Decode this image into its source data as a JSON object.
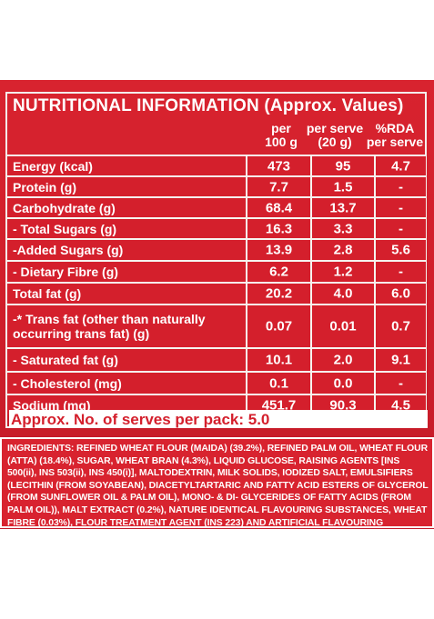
{
  "title": "NUTRITIONAL INFORMATION (Approx. Values)",
  "columns": [
    "per\n100 g",
    "per serve\n(20 g)",
    "%RDA\nper serve"
  ],
  "rows": [
    {
      "label": "Energy (kcal)",
      "per100": "473",
      "serve": "95",
      "rda": "4.7"
    },
    {
      "label": "Protein (g)",
      "per100": "7.7",
      "serve": "1.5",
      "rda": "-"
    },
    {
      "label": "Carbohydrate (g)",
      "per100": "68.4",
      "serve": "13.7",
      "rda": "-"
    },
    {
      "label": "  - Total Sugars (g)",
      "per100": "16.3",
      "serve": "3.3",
      "rda": "-"
    },
    {
      "label": "    -Added Sugars (g)",
      "per100": "13.9",
      "serve": "2.8",
      "rda": "5.6"
    },
    {
      "label": "- Dietary Fibre (g)",
      "per100": "6.2",
      "serve": "1.2",
      "rda": "-"
    },
    {
      "label": "Total fat (g)",
      "per100": "20.2",
      "serve": "4.0",
      "rda": "6.0"
    },
    {
      "label": "  -* Trans fat (other than naturally\n     occurring trans fat) (g)",
      "per100": "0.07",
      "serve": "0.01",
      "rda": "0.7"
    },
    {
      "label": "  - Saturated fat (g)",
      "per100": "10.1",
      "serve": "2.0",
      "rda": "9.1"
    },
    {
      "label": "  - Cholesterol (mg)",
      "per100": "0.1",
      "serve": "0.0",
      "rda": "-"
    },
    {
      "label": "Sodium (mg)",
      "per100": "451.7",
      "serve": "90.3",
      "rda": "4.5"
    }
  ],
  "serves_note": "Approx. No. of serves per pack: 5.0",
  "ingredients": "INGREDIENTS: REFINED WHEAT FLOUR (MAIDA) (39.2%), REFINED PALM OIL, WHEAT FLOUR (ATTA) (18.4%), SUGAR, WHEAT BRAN (4.3%), LIQUID GLUCOSE, RAISING AGENTS [INS 500(ii), INS 503(ii), INS 450(i)], MALTODEXTRIN, MILK SOLIDS, IODIZED SALT, EMULSIFIERS (LECITHIN (FROM SOYABEAN), DIACETYLTARTARIC AND FATTY ACID ESTERS OF GLYCEROL (FROM SUNFLOWER OIL & PALM OIL), MONO- & DI- GLYCERIDES OF FATTY ACIDS (FROM PALM OIL)), MALT EXTRACT (0.2%), NATURE IDENTICAL FLAVOURING SUBSTANCES, WHEAT FIBRE (0.03%), FLOUR TREATMENT AGENT (INS 223) AND ARTIFICIAL FLAVOURING SUBSTANCES (VANILLA). CONTAINS WHEAT, MILK, SOY, SULPHITES. MAY CONTAINS NUTS."
}
